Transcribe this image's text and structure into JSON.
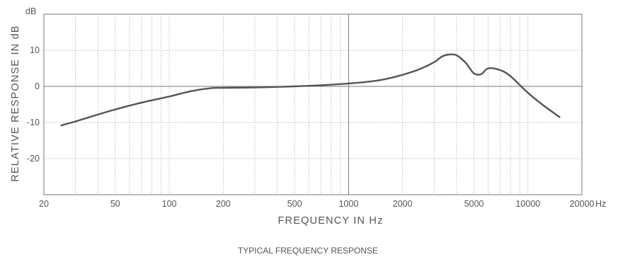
{
  "chart_data": {
    "type": "line",
    "title": "",
    "caption": "TYPICAL FREQUENCY RESPONSE",
    "xlabel": "FREQUENCY IN Hz",
    "ylabel": "RELATIVE RESPONSE IN dB",
    "y_unit_label": "dB",
    "x_unit_suffix": "Hz",
    "x_scale": "log",
    "xlim": [
      20,
      20000
    ],
    "ylim": [
      -30,
      20
    ],
    "grid": true,
    "x_ticks": [
      {
        "value": 20,
        "label": "20"
      },
      {
        "value": 50,
        "label": "50"
      },
      {
        "value": 100,
        "label": "100"
      },
      {
        "value": 200,
        "label": "200"
      },
      {
        "value": 500,
        "label": "500"
      },
      {
        "value": 1000,
        "label": "1000"
      },
      {
        "value": 2000,
        "label": "2000"
      },
      {
        "value": 5000,
        "label": "5000"
      },
      {
        "value": 10000,
        "label": "10000"
      },
      {
        "value": 20000,
        "label": "20000"
      }
    ],
    "y_ticks": [
      {
        "value": 10,
        "label": "10"
      },
      {
        "value": 0,
        "label": "0"
      },
      {
        "value": -10,
        "label": "-10"
      },
      {
        "value": -20,
        "label": "-20"
      }
    ],
    "colors": {
      "line": "#555555",
      "grid": "#999999",
      "frame": "#777777",
      "text": "#555555"
    },
    "series": [
      {
        "x": [
          25,
          30,
          40,
          50,
          70,
          100,
          130,
          170,
          200,
          300,
          500,
          700,
          1000,
          1300,
          1600,
          2000,
          2500,
          3000,
          3300,
          3600,
          4000,
          4500,
          5000,
          5500,
          6000,
          7000,
          8000,
          10000,
          12000,
          15000
        ],
        "y": [
          -10.8,
          -9.7,
          -7.8,
          -6.4,
          -4.5,
          -2.8,
          -1.4,
          -0.5,
          -0.4,
          -0.3,
          0.0,
          0.3,
          0.8,
          1.3,
          2.0,
          3.2,
          4.8,
          6.7,
          8.2,
          8.8,
          8.6,
          6.5,
          3.6,
          3.4,
          5.0,
          4.5,
          2.8,
          -1.8,
          -5.0,
          -8.5
        ]
      }
    ]
  }
}
